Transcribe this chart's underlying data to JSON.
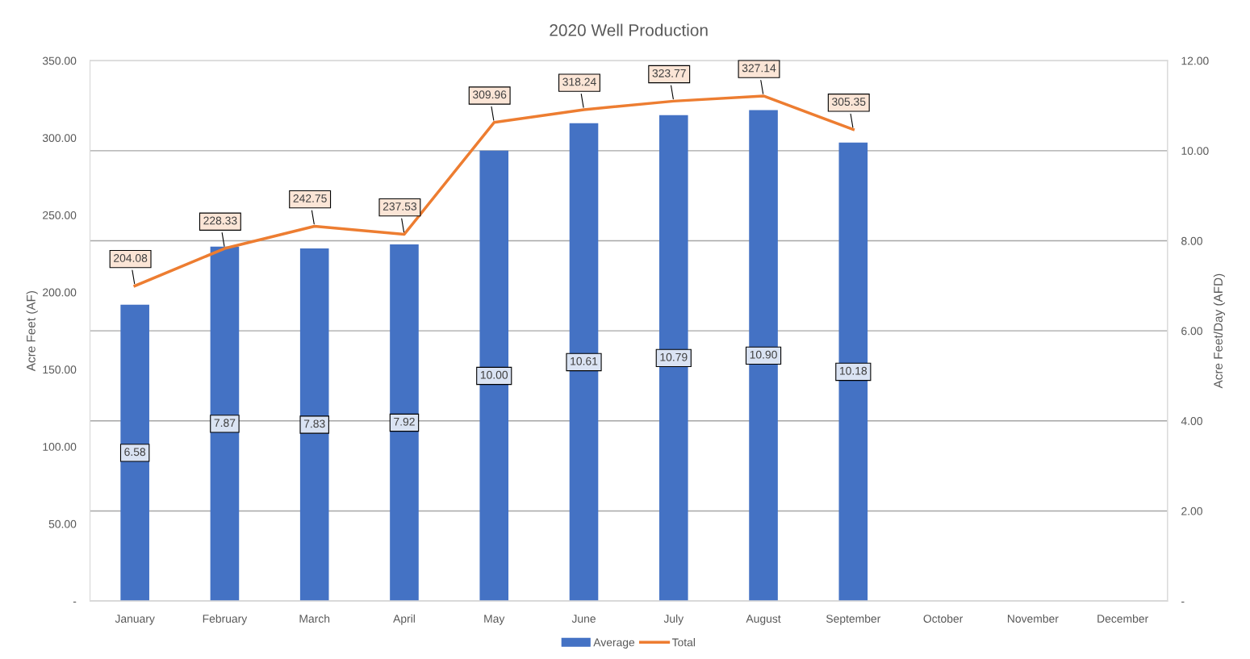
{
  "chart_data": {
    "type": "bar",
    "title": "2020 Well Production",
    "ylabel": "Acre Feet (AF)",
    "y2label": "Acre Feet/Day (AFD)",
    "categories": [
      "January",
      "February",
      "March",
      "April",
      "May",
      "June",
      "July",
      "August",
      "September",
      "October",
      "November",
      "December"
    ],
    "series": [
      {
        "name": "Average",
        "axis": "y2",
        "color": "#4472c4",
        "values": [
          6.58,
          7.87,
          7.83,
          7.92,
          10.0,
          10.61,
          10.79,
          10.9,
          10.18,
          null,
          null,
          null
        ],
        "value_labels": [
          "6.58",
          "7.87",
          "7.83",
          "7.92",
          "10.00",
          "10.61",
          "10.79",
          "10.90",
          "10.18",
          null,
          null,
          null
        ]
      },
      {
        "name": "Total",
        "type": "line",
        "color": "#ed7d31",
        "values": [
          204.08,
          228.33,
          242.75,
          237.53,
          309.96,
          318.24,
          323.77,
          327.14,
          305.35,
          null,
          null,
          null
        ],
        "value_labels": [
          "204.08",
          "228.33",
          "242.75",
          "237.53",
          "309.96",
          "318.24",
          "323.77",
          "327.14",
          "305.35",
          null,
          null,
          null
        ]
      }
    ],
    "ylim": [
      0,
      350
    ],
    "yticks": [
      {
        "value": 0,
        "label": "-"
      },
      {
        "value": 50,
        "label": "50.00"
      },
      {
        "value": 100,
        "label": "100.00"
      },
      {
        "value": 150,
        "label": "150.00"
      },
      {
        "value": 200,
        "label": "200.00"
      },
      {
        "value": 250,
        "label": "250.00"
      },
      {
        "value": 300,
        "label": "300.00"
      },
      {
        "value": 350,
        "label": "350.00"
      }
    ],
    "y2lim": [
      0,
      12
    ],
    "y2ticks": [
      {
        "value": 0,
        "label": "-"
      },
      {
        "value": 2,
        "label": "2.00"
      },
      {
        "value": 4,
        "label": "4.00"
      },
      {
        "value": 6,
        "label": "6.00"
      },
      {
        "value": 8,
        "label": "8.00"
      },
      {
        "value": 10,
        "label": "10.00"
      },
      {
        "value": 12,
        "label": "12.00"
      }
    ],
    "grid": "y2",
    "legend": "bottom",
    "marker": "none",
    "line_style": "solid"
  }
}
